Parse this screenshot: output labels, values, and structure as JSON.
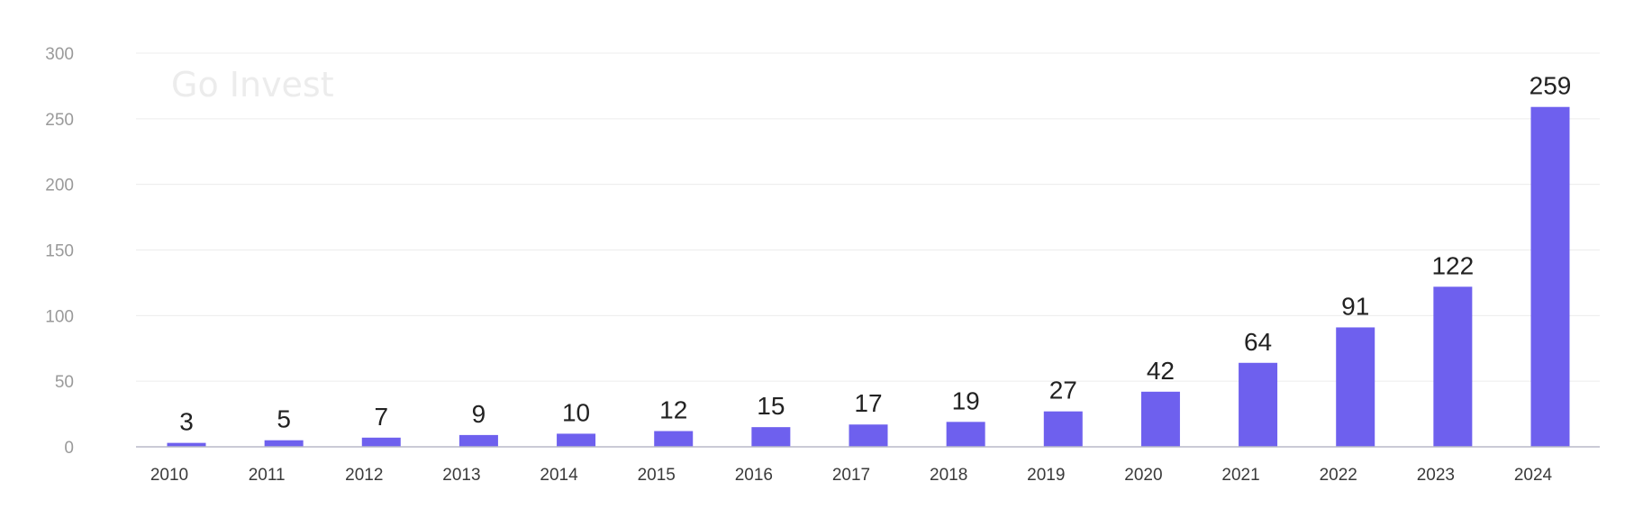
{
  "watermark": "Go Invest",
  "colors": {
    "bar": "#6E60EE",
    "grid": "#ececec",
    "axis": "#b9b9c9"
  },
  "chart_data": {
    "type": "bar",
    "categories": [
      "2010",
      "2011",
      "2012",
      "2013",
      "2014",
      "2015",
      "2016",
      "2017",
      "2018",
      "2019",
      "2020",
      "2021",
      "2022",
      "2023",
      "2024"
    ],
    "values": [
      3,
      5,
      7,
      9,
      10,
      12,
      15,
      17,
      19,
      27,
      42,
      64,
      91,
      122,
      259
    ],
    "ylim": [
      0,
      300
    ],
    "yticks": [
      0,
      50,
      100,
      150,
      200,
      250,
      300
    ],
    "grid": true,
    "data_labels": true,
    "title": "",
    "xlabel": "",
    "ylabel": ""
  }
}
